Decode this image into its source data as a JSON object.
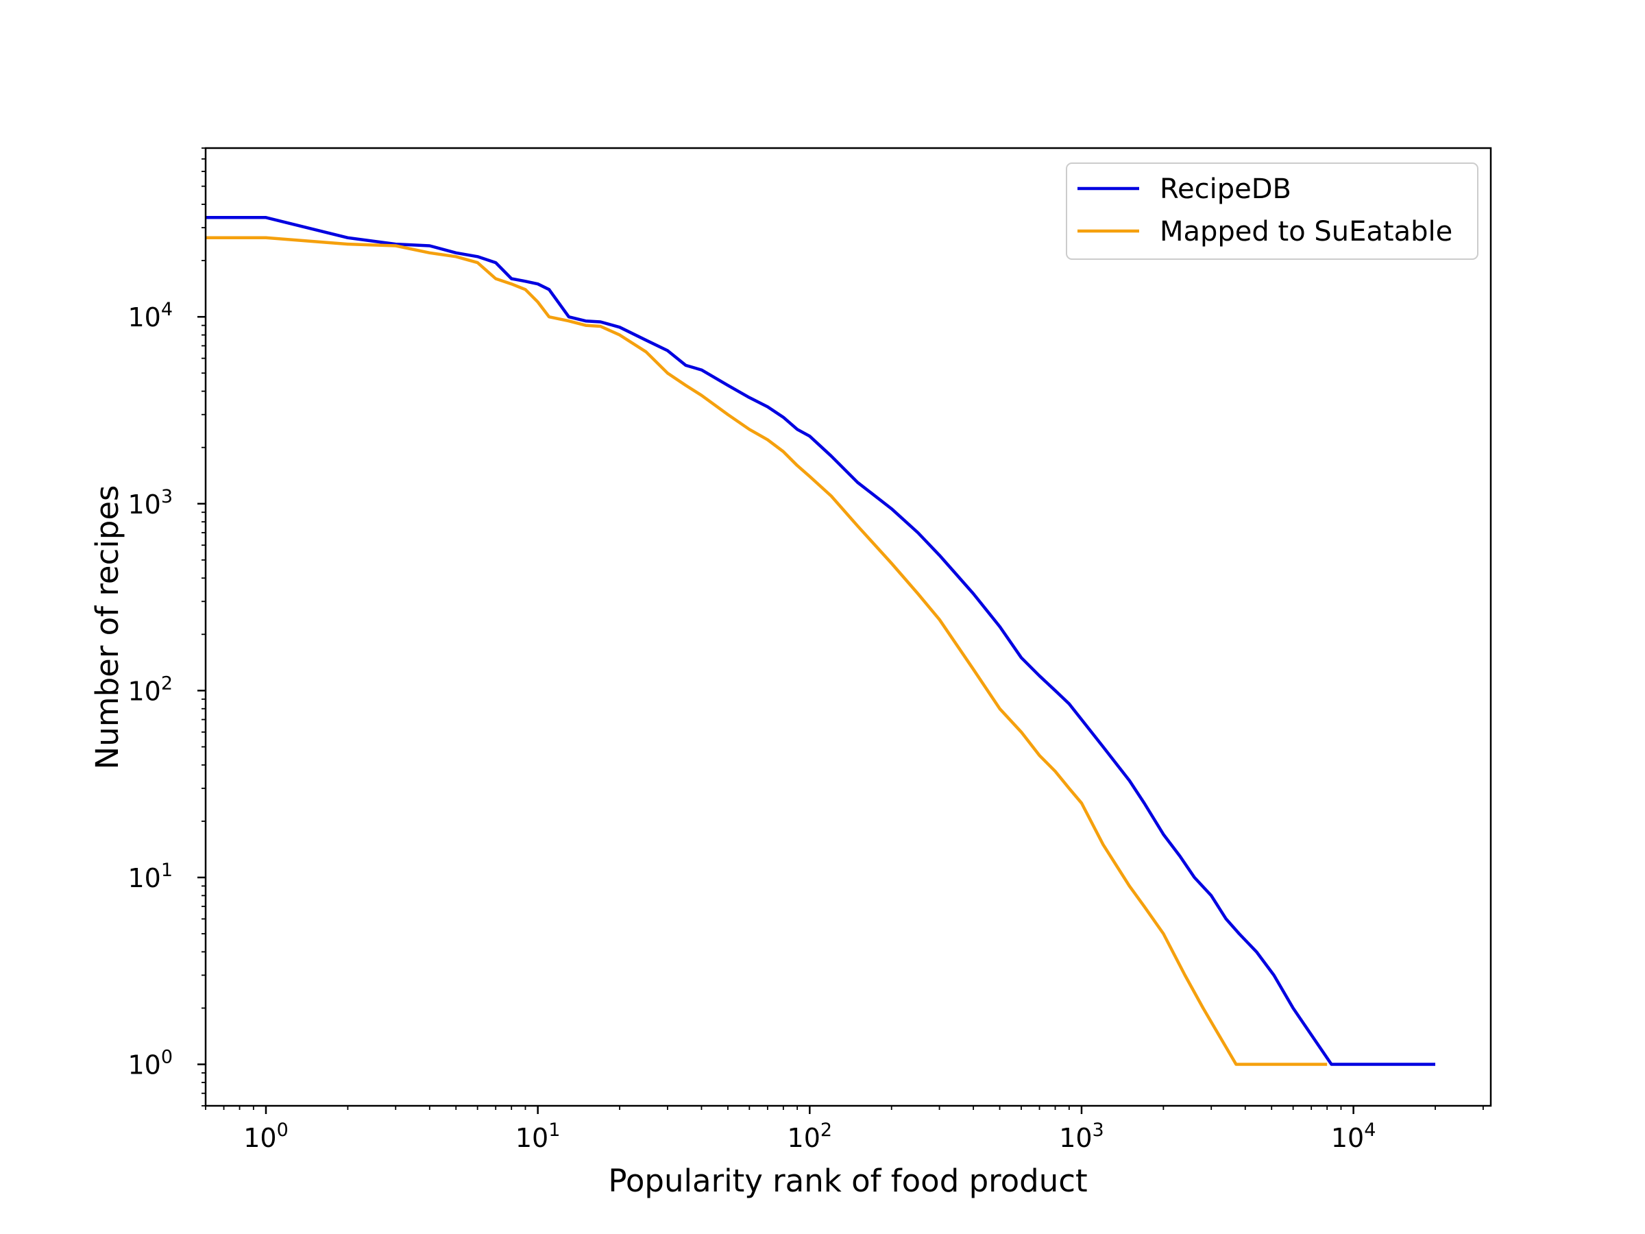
{
  "chart_data": {
    "type": "line",
    "title": "",
    "xlabel": "Popularity rank of food product",
    "ylabel": "Number of recipes",
    "xscale": "log",
    "yscale": "log",
    "xlim": [
      0.6,
      32000
    ],
    "ylim": [
      0.6,
      80000
    ],
    "x_ticks": [
      {
        "base": "10",
        "exp": "0"
      },
      {
        "base": "10",
        "exp": "1"
      },
      {
        "base": "10",
        "exp": "2"
      },
      {
        "base": "10",
        "exp": "3"
      },
      {
        "base": "10",
        "exp": "4"
      }
    ],
    "y_ticks": [
      {
        "base": "10",
        "exp": "0"
      },
      {
        "base": "10",
        "exp": "1"
      },
      {
        "base": "10",
        "exp": "2"
      },
      {
        "base": "10",
        "exp": "3"
      },
      {
        "base": "10",
        "exp": "4"
      }
    ],
    "grid": false,
    "legend_position": "top-right",
    "series": [
      {
        "name": "RecipeDB",
        "color": "#0000e0",
        "x": [
          0.6,
          1,
          2,
          3,
          4,
          5,
          6,
          7,
          8,
          9,
          10,
          11,
          13,
          15,
          17,
          20,
          25,
          30,
          35,
          40,
          50,
          60,
          70,
          80,
          90,
          100,
          120,
          150,
          200,
          250,
          300,
          400,
          500,
          600,
          700,
          800,
          900,
          1000,
          1200,
          1500,
          1700,
          2000,
          2300,
          2600,
          3000,
          3400,
          3800,
          4400,
          5100,
          6000,
          8300,
          20000
        ],
        "y": [
          34000,
          34000,
          26500,
          24500,
          24000,
          22000,
          21000,
          19500,
          16000,
          15500,
          15000,
          14000,
          10000,
          9500,
          9400,
          8800,
          7500,
          6600,
          5500,
          5200,
          4300,
          3700,
          3300,
          2900,
          2500,
          2300,
          1800,
          1300,
          940,
          700,
          530,
          330,
          220,
          150,
          120,
          100,
          85,
          70,
          50,
          33,
          25,
          17,
          13,
          10,
          8,
          6,
          5,
          4,
          3,
          2,
          1,
          1
        ]
      },
      {
        "name": "Mapped to SuEatable",
        "color": "#f5a00d",
        "x": [
          0.6,
          1,
          2,
          3,
          4,
          5,
          6,
          7,
          8,
          9,
          10,
          11,
          13,
          15,
          17,
          20,
          25,
          30,
          35,
          40,
          50,
          60,
          70,
          80,
          90,
          100,
          120,
          150,
          200,
          250,
          300,
          400,
          500,
          600,
          700,
          800,
          900,
          1000,
          1200,
          1500,
          1700,
          2000,
          2400,
          2800,
          3700,
          8000
        ],
        "y": [
          26500,
          26500,
          24500,
          24000,
          22000,
          21000,
          19500,
          16000,
          15000,
          14000,
          12000,
          10000,
          9500,
          9000,
          8900,
          8000,
          6500,
          5000,
          4300,
          3800,
          3000,
          2500,
          2200,
          1900,
          1600,
          1400,
          1100,
          760,
          480,
          330,
          240,
          130,
          80,
          60,
          45,
          37,
          30,
          25,
          15,
          9,
          7,
          5,
          3,
          2,
          1,
          1
        ]
      }
    ]
  }
}
